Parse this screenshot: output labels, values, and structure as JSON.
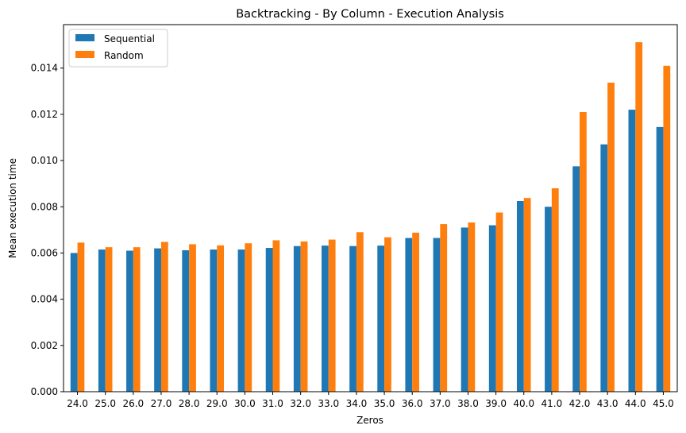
{
  "chart_data": {
    "type": "bar",
    "title": "Backtracking - By Column - Execution Analysis",
    "xlabel": "Zeros",
    "ylabel": "Mean execution time",
    "categories": [
      "24.0",
      "25.0",
      "26.0",
      "27.0",
      "28.0",
      "29.0",
      "30.0",
      "31.0",
      "32.0",
      "33.0",
      "34.0",
      "35.0",
      "36.0",
      "37.0",
      "38.0",
      "39.0",
      "40.0",
      "41.0",
      "42.0",
      "43.0",
      "44.0",
      "45.0"
    ],
    "series": [
      {
        "name": "Sequential",
        "color": "#1f77b4",
        "values": [
          0.006,
          0.00615,
          0.0061,
          0.0062,
          0.00612,
          0.00615,
          0.00615,
          0.00622,
          0.0063,
          0.00632,
          0.0063,
          0.00632,
          0.00665,
          0.00665,
          0.0071,
          0.0072,
          0.00825,
          0.008,
          0.00975,
          0.0107,
          0.0122,
          0.01145
        ]
      },
      {
        "name": "Random",
        "color": "#ff7f0e",
        "values": [
          0.00645,
          0.00625,
          0.00625,
          0.00648,
          0.00638,
          0.00633,
          0.00642,
          0.00655,
          0.0065,
          0.00658,
          0.0069,
          0.00668,
          0.00688,
          0.00725,
          0.00732,
          0.00775,
          0.00838,
          0.0088,
          0.0121,
          0.01337,
          0.01512,
          0.0141
        ]
      }
    ],
    "yticks": [
      "0.000",
      "0.002",
      "0.004",
      "0.006",
      "0.008",
      "0.010",
      "0.012",
      "0.014"
    ],
    "ytick_values": [
      0,
      0.002,
      0.004,
      0.006,
      0.008,
      0.01,
      0.012,
      0.014
    ],
    "ylim": [
      0,
      0.01588
    ],
    "grid": false,
    "legend": "top-left"
  }
}
